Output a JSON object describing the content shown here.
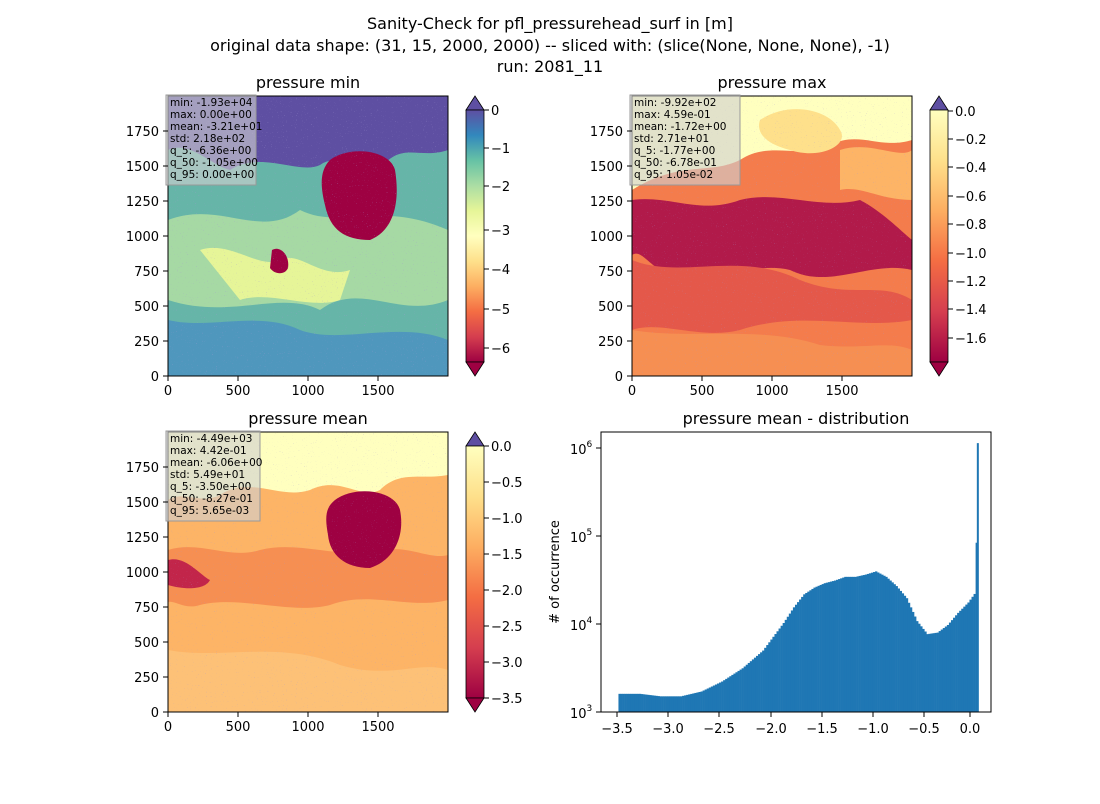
{
  "figure": {
    "title_lines": [
      "Sanity-Check for pfl_pressurehead_surf in [m]",
      "original data shape: (31, 15, 2000, 2000) -- sliced with: (slice(None, None, None), -1)",
      "run: 2081_11"
    ]
  },
  "chart_data": [
    {
      "type": "heatmap",
      "title": "pressure min",
      "colormap": "Spectral",
      "xlim": [
        0,
        2000
      ],
      "ylim": [
        0,
        2000
      ],
      "xticks": [
        "0",
        "500",
        "1000",
        "1500"
      ],
      "yticks": [
        "0",
        "250",
        "500",
        "750",
        "1000",
        "1250",
        "1500",
        "1750"
      ],
      "colorbar": {
        "range": [
          -6.6,
          0.1
        ],
        "ticks": [
          "0",
          "−1",
          "−2",
          "−3",
          "−4",
          "−5",
          "−6"
        ],
        "extend": "both"
      },
      "stats": [
        "min: -1.93e+04",
        "max: 0.00e+00",
        "mean: -3.21e+01",
        "std: 2.18e+02",
        "q_5: -6.36e+00",
        "q_50: -1.05e+00",
        "q_95: 0.00e+00"
      ]
    },
    {
      "type": "heatmap",
      "title": "pressure max",
      "colormap": "Spectral",
      "xlim": [
        0,
        2000
      ],
      "ylim": [
        0,
        2000
      ],
      "xticks": [
        "0",
        "500",
        "1000",
        "1500"
      ],
      "yticks": [
        "0",
        "250",
        "500",
        "750",
        "1000",
        "1250",
        "1500",
        "1750"
      ],
      "colorbar": {
        "range": [
          -1.77,
          0.01
        ],
        "ticks": [
          "0.0",
          "−0.2",
          "−0.4",
          "−0.6",
          "−0.8",
          "−1.0",
          "−1.2",
          "−1.4",
          "−1.6"
        ],
        "extend": "both"
      },
      "stats": [
        "min: -9.92e+02",
        "max: 4.59e-01",
        "mean: -1.72e+00",
        "std: 2.71e+01",
        "q_5: -1.77e+00",
        "q_50: -6.78e-01",
        "q_95: 1.05e-02"
      ]
    },
    {
      "type": "heatmap",
      "title": "pressure mean",
      "colormap": "Spectral",
      "xlim": [
        0,
        2000
      ],
      "ylim": [
        0,
        2000
      ],
      "xticks": [
        "0",
        "500",
        "1000",
        "1500"
      ],
      "yticks": [
        "0",
        "250",
        "500",
        "750",
        "1000",
        "1250",
        "1500",
        "1750"
      ],
      "colorbar": {
        "range": [
          -3.5,
          0.0
        ],
        "ticks": [
          "0.0",
          "−0.5",
          "−1.0",
          "−1.5",
          "−2.0",
          "−2.5",
          "−3.0",
          "−3.5"
        ],
        "extend": "both"
      },
      "stats": [
        "min: -4.49e+03",
        "max: 4.42e-01",
        "mean: -6.06e+00",
        "std: 5.49e+01",
        "q_5: -3.50e+00",
        "q_50: -8.27e-01",
        "q_95: 5.65e-03"
      ]
    },
    {
      "type": "bar",
      "title": "pressure mean - distribution",
      "ylabel": "# of occurrence",
      "xlabel": "",
      "yscale": "log",
      "xlim": [
        -3.67,
        0.13
      ],
      "ylim": [
        1000,
        1400000
      ],
      "xticks": [
        "−3.5",
        "−3.0",
        "−2.5",
        "−2.0",
        "−1.5",
        "−1.0",
        "−0.5",
        "0.0"
      ],
      "yticks": [
        "10",
        "10",
        "10",
        "10"
      ],
      "ytick_exponents": [
        "3",
        "4",
        "5",
        "6"
      ],
      "color": "#1f77b4",
      "x": [
        -3.5,
        -3.3,
        -3.1,
        -2.9,
        -2.7,
        -2.5,
        -2.3,
        -2.1,
        -2.0,
        -1.9,
        -1.8,
        -1.7,
        -1.6,
        -1.5,
        -1.4,
        -1.3,
        -1.2,
        -1.1,
        -1.0,
        -0.9,
        -0.8,
        -0.7,
        -0.6,
        -0.5,
        -0.4,
        -0.3,
        -0.2,
        -0.1,
        -0.03,
        0.0
      ],
      "values": [
        1600,
        1600,
        1500,
        1500,
        1700,
        2200,
        3100,
        4900,
        7000,
        10000,
        15000,
        21000,
        25000,
        28000,
        30000,
        33000,
        33000,
        35000,
        38000,
        33000,
        26000,
        19000,
        10500,
        7500,
        7800,
        9500,
        13000,
        17000,
        22000,
        1050000
      ]
    }
  ]
}
